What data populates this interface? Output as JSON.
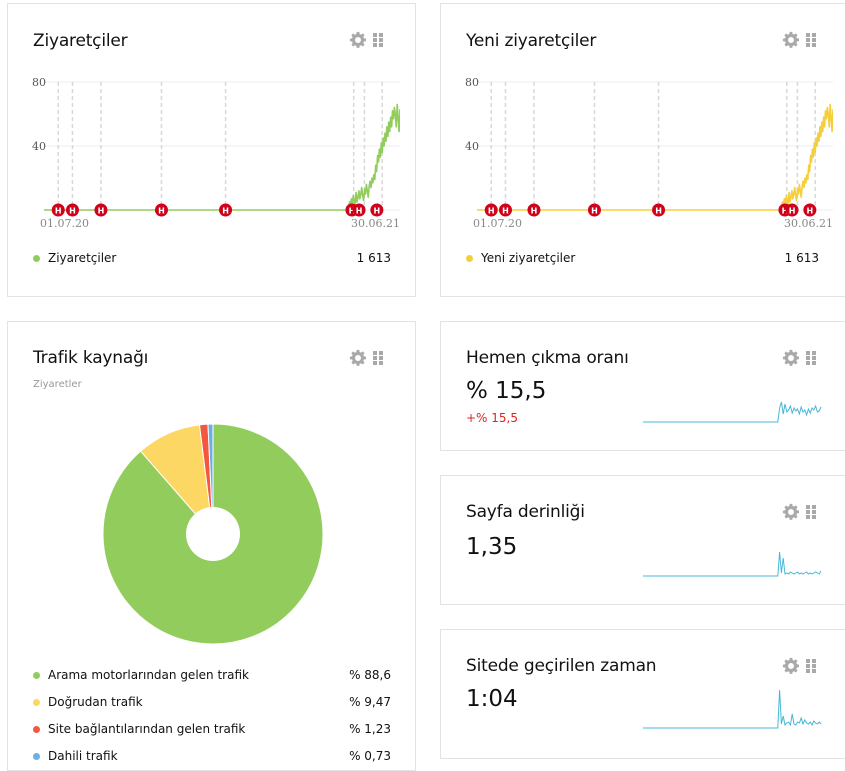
{
  "colors": {
    "green": "#92cc5c",
    "yellow": "#f5cf3b",
    "red_marker": "#d0021b",
    "spark": "#48b8d8",
    "grid": "#ececec",
    "delta": "#e0241b"
  },
  "icons": {
    "settings": "gear-icon",
    "drag": "drag-handle-icon",
    "annotation": "holiday-marker-icon"
  },
  "visitors": {
    "title": "Ziyaretçiler",
    "y_ticks": [
      "80",
      "40"
    ],
    "x_start": "01.07.20",
    "x_end": "30.06.21",
    "marker_letter": "H",
    "legend_label": "Ziyaretçiler",
    "legend_value": "1 613"
  },
  "new_visitors": {
    "title": "Yeni ziyaretçiler",
    "y_ticks": [
      "80",
      "40"
    ],
    "x_start": "01.07.20",
    "x_end": "30.06.21",
    "marker_letter": "H",
    "legend_label": "Yeni ziyaretçiler",
    "legend_value": "1 613"
  },
  "traffic": {
    "title": "Trafik kaynağı",
    "subtitle": "Ziyaretler",
    "items": [
      {
        "label": "Arama motorlarından gelen trafik",
        "value": "% 88,6",
        "color": "#92cc5c"
      },
      {
        "label": "Doğrudan trafik",
        "value": "% 9,47",
        "color": "#fdd764"
      },
      {
        "label": "Site bağlantılarından gelen trafik",
        "value": "% 1,23",
        "color": "#f4573f"
      },
      {
        "label": "Dahili trafik",
        "value": "% 0,73",
        "color": "#6bb0e0"
      }
    ]
  },
  "bounce": {
    "title": "Hemen çıkma oranı",
    "value": "% 15,5",
    "delta": "+% 15,5"
  },
  "depth": {
    "title": "Sayfa derinliği",
    "value": "1,35"
  },
  "time": {
    "title": "Sitede geçirilen zaman",
    "value": "1:04"
  },
  "chart_data": [
    {
      "type": "line",
      "title": "Ziyaretçiler",
      "x_range": [
        "01.07.20",
        "30.06.21"
      ],
      "ylim": [
        0,
        80
      ],
      "y_ticks": [
        40,
        80
      ],
      "series": [
        {
          "name": "Ziyaretçiler",
          "values": [
            0,
            0,
            0,
            0,
            0,
            0,
            0,
            0,
            0,
            0,
            0,
            0,
            0,
            0,
            0,
            0,
            0,
            0,
            0,
            0,
            0,
            0,
            0,
            0,
            0,
            0,
            0,
            0,
            0,
            0,
            0,
            0,
            0,
            0,
            0,
            0,
            0,
            0,
            0,
            0,
            0,
            0,
            0,
            0,
            0,
            0,
            0,
            0,
            0,
            0,
            0,
            0,
            0,
            0,
            0,
            0,
            0,
            0,
            0,
            0,
            0,
            0,
            0,
            0,
            0,
            0,
            0,
            0,
            0,
            0,
            0,
            0,
            0,
            0,
            0,
            0,
            0,
            0,
            0,
            0,
            0,
            0,
            0,
            0,
            0,
            0,
            0,
            0,
            0,
            0,
            0,
            0,
            0,
            0,
            0,
            0,
            0,
            0,
            0,
            0,
            0,
            0,
            0,
            0,
            0,
            0,
            0,
            0,
            0,
            0,
            0,
            0,
            0,
            0,
            0,
            0,
            0,
            0,
            0,
            0,
            0,
            0,
            0,
            0,
            0,
            0,
            0,
            0,
            0,
            0,
            0,
            0,
            0,
            0,
            0,
            0,
            0,
            0,
            0,
            0,
            0,
            0,
            0,
            0,
            0,
            0,
            0,
            0,
            0,
            0,
            0,
            0,
            0,
            0,
            0,
            0,
            0,
            0,
            0,
            0,
            0,
            0,
            0,
            0,
            0,
            0,
            0,
            0,
            0,
            0,
            0,
            0,
            0,
            0,
            0,
            0,
            0,
            0,
            0,
            0,
            0,
            0,
            0,
            0,
            0,
            0,
            0,
            0,
            0,
            0,
            0,
            0,
            0,
            0,
            0,
            0,
            0,
            0,
            0,
            0,
            0,
            0,
            0,
            0,
            0,
            0,
            0,
            0,
            0,
            0,
            0,
            0,
            0,
            0,
            0,
            0,
            0,
            0,
            0,
            0,
            0,
            0,
            0,
            0,
            0,
            0,
            0,
            0,
            0,
            0,
            0,
            0,
            0,
            0,
            0,
            0,
            0,
            0,
            0,
            0,
            0,
            0,
            0,
            0,
            0,
            0,
            0,
            0,
            0,
            0,
            0,
            0,
            0,
            0,
            0,
            0,
            0,
            0,
            0,
            0,
            0,
            0,
            0,
            0,
            0,
            0,
            0,
            0,
            0,
            0,
            0,
            0,
            0,
            0,
            0,
            0,
            0,
            0,
            0,
            0,
            0,
            0,
            0,
            0,
            0,
            0,
            0,
            0,
            0,
            0,
            0,
            0,
            0,
            0,
            0,
            0,
            0,
            0,
            0,
            0,
            0,
            0,
            0,
            0,
            0,
            0,
            0,
            0,
            0,
            0,
            0,
            0,
            0,
            0,
            0,
            0,
            0,
            0,
            0,
            0,
            0,
            0,
            0,
            0,
            0,
            0,
            2,
            5,
            3,
            7,
            4,
            9,
            6,
            3,
            11,
            5,
            8,
            12,
            7,
            10,
            14,
            9,
            6,
            13,
            10,
            16,
            12,
            8,
            15,
            18,
            14,
            20,
            17,
            22,
            19,
            28,
            24,
            34,
            30,
            38,
            33,
            42,
            36,
            45,
            40,
            48,
            43,
            52,
            46,
            55,
            49,
            58,
            52,
            62,
            57,
            64,
            60,
            52,
            66,
            58,
            49,
            63
          ]
        }
      ]
    },
    {
      "type": "line",
      "title": "Yeni ziyaretçiler",
      "x_range": [
        "01.07.20",
        "30.06.21"
      ],
      "ylim": [
        0,
        80
      ],
      "y_ticks": [
        40,
        80
      ],
      "series": [
        {
          "name": "Yeni ziyaretçiler",
          "values": [
            0,
            0,
            0,
            0,
            0,
            0,
            0,
            0,
            0,
            0,
            0,
            0,
            0,
            0,
            0,
            0,
            0,
            0,
            0,
            0,
            0,
            0,
            0,
            0,
            0,
            0,
            0,
            0,
            0,
            0,
            0,
            0,
            0,
            0,
            0,
            0,
            0,
            0,
            0,
            0,
            0,
            0,
            0,
            0,
            0,
            0,
            0,
            0,
            0,
            0,
            0,
            0,
            0,
            0,
            0,
            0,
            0,
            0,
            0,
            0,
            0,
            0,
            0,
            0,
            0,
            0,
            0,
            0,
            0,
            0,
            0,
            0,
            0,
            0,
            0,
            0,
            0,
            0,
            0,
            0,
            0,
            0,
            0,
            0,
            0,
            0,
            0,
            0,
            0,
            0,
            0,
            0,
            0,
            0,
            0,
            0,
            0,
            0,
            0,
            0,
            0,
            0,
            0,
            0,
            0,
            0,
            0,
            0,
            0,
            0,
            0,
            0,
            0,
            0,
            0,
            0,
            0,
            0,
            0,
            0,
            0,
            0,
            0,
            0,
            0,
            0,
            0,
            0,
            0,
            0,
            0,
            0,
            0,
            0,
            0,
            0,
            0,
            0,
            0,
            0,
            0,
            0,
            0,
            0,
            0,
            0,
            0,
            0,
            0,
            0,
            0,
            0,
            0,
            0,
            0,
            0,
            0,
            0,
            0,
            0,
            0,
            0,
            0,
            0,
            0,
            0,
            0,
            0,
            0,
            0,
            0,
            0,
            0,
            0,
            0,
            0,
            0,
            0,
            0,
            0,
            0,
            0,
            0,
            0,
            0,
            0,
            0,
            0,
            0,
            0,
            0,
            0,
            0,
            0,
            0,
            0,
            0,
            0,
            0,
            0,
            0,
            0,
            0,
            0,
            0,
            0,
            0,
            0,
            0,
            0,
            0,
            0,
            0,
            0,
            0,
            0,
            0,
            0,
            0,
            0,
            0,
            0,
            0,
            0,
            0,
            0,
            0,
            0,
            0,
            0,
            0,
            0,
            0,
            0,
            0,
            0,
            0,
            0,
            0,
            0,
            0,
            0,
            0,
            0,
            0,
            0,
            0,
            0,
            0,
            0,
            0,
            0,
            0,
            0,
            0,
            0,
            0,
            0,
            0,
            0,
            0,
            0,
            0,
            0,
            0,
            0,
            0,
            0,
            0,
            0,
            0,
            0,
            0,
            0,
            0,
            0,
            0,
            0,
            0,
            0,
            0,
            0,
            0,
            0,
            0,
            0,
            0,
            0,
            0,
            0,
            0,
            0,
            0,
            0,
            0,
            0,
            0,
            0,
            0,
            0,
            0,
            0,
            0,
            0,
            0,
            0,
            0,
            0,
            0,
            0,
            0,
            0,
            0,
            0,
            0,
            0,
            0,
            0,
            0,
            0,
            0,
            0,
            0,
            0,
            0,
            0,
            2,
            5,
            3,
            7,
            4,
            9,
            6,
            3,
            11,
            5,
            8,
            12,
            7,
            10,
            14,
            9,
            6,
            13,
            10,
            16,
            12,
            8,
            15,
            18,
            14,
            20,
            17,
            22,
            19,
            28,
            24,
            34,
            30,
            38,
            33,
            42,
            36,
            45,
            40,
            48,
            43,
            52,
            46,
            55,
            49,
            58,
            52,
            62,
            57,
            64,
            60,
            52,
            66,
            58,
            49,
            63
          ]
        }
      ]
    },
    {
      "type": "pie",
      "title": "Trafik kaynağı",
      "categories": [
        "Arama motorlarından gelen trafik",
        "Doğrudan trafik",
        "Site bağlantılarından gelen trafik",
        "Dahili trafik"
      ],
      "values": [
        88.6,
        9.47,
        1.23,
        0.73
      ]
    }
  ]
}
